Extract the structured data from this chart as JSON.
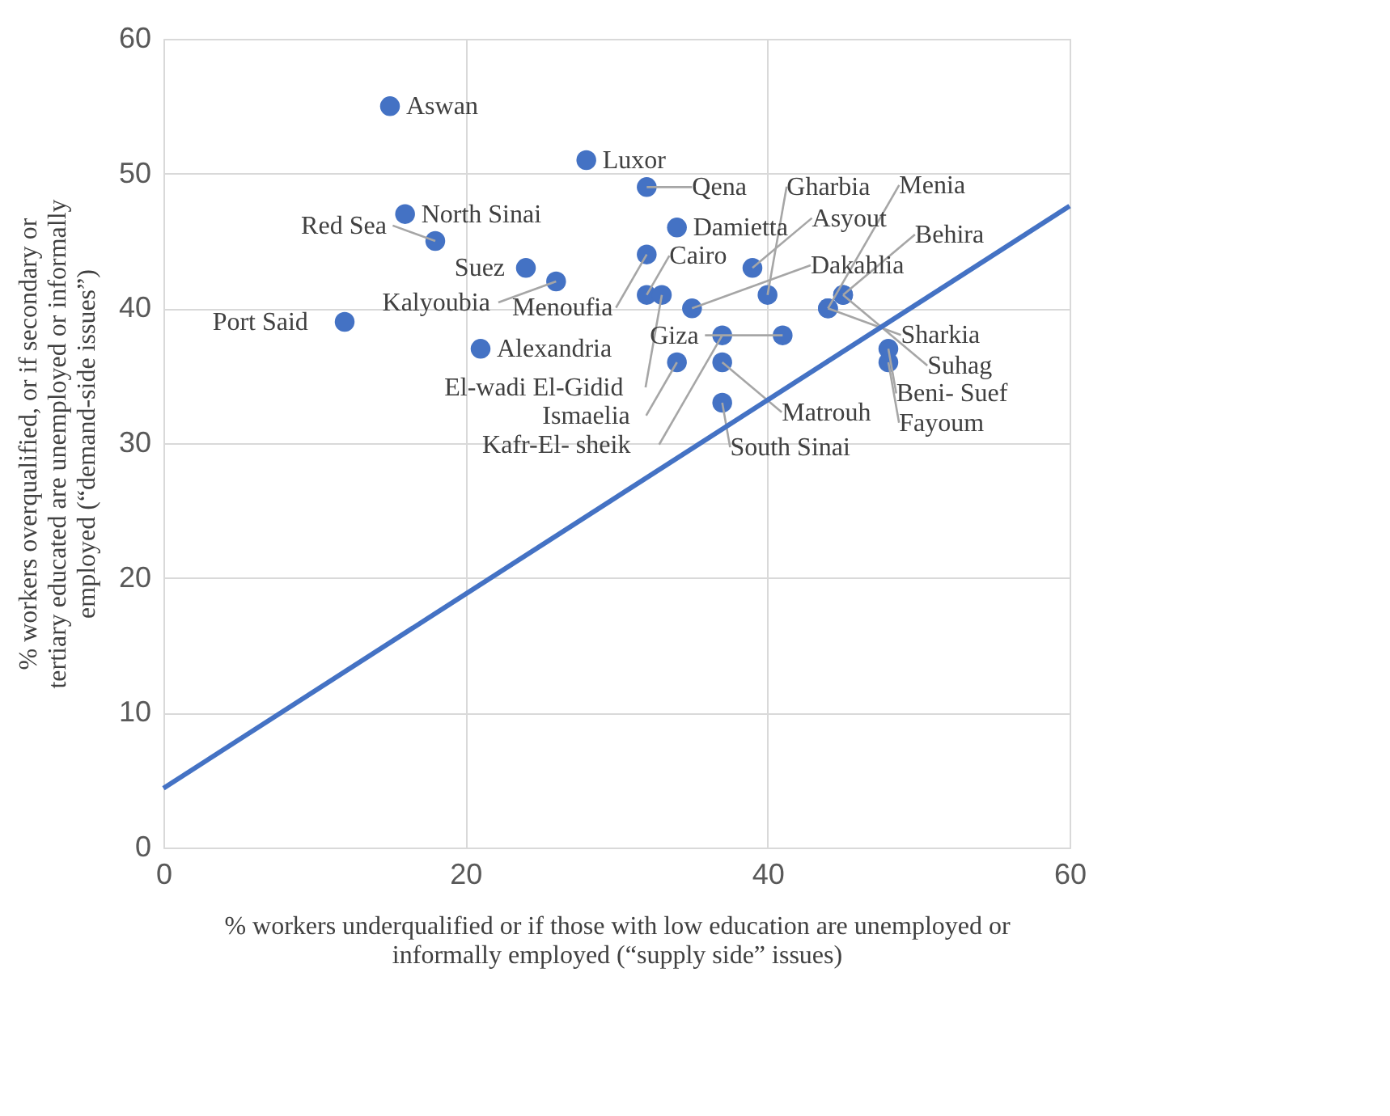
{
  "chart_data": {
    "type": "scatter",
    "xlabel": "% workers underqualified or if those with low education are unemployed or informally employed (“supply side” issues)",
    "ylabel": "% workers overqualified,  or if secondary or tertiary educated are unemployed or informally employed (“demand-side issues”)",
    "xlim": [
      0,
      60
    ],
    "xticks": [
      0,
      20,
      40,
      60
    ],
    "ylim": [
      0,
      60
    ],
    "yticks": [
      0,
      10,
      20,
      30,
      40,
      50,
      60
    ],
    "grid": true,
    "marker": "circle",
    "series": [
      {
        "color": "#4472c4",
        "x": [
          15,
          28,
          32,
          16,
          18,
          34,
          32,
          24,
          26,
          12,
          21,
          32,
          33,
          34,
          37,
          37,
          37,
          35,
          39,
          40,
          44,
          45,
          41,
          48,
          48,
          44,
          45
        ],
        "values": [
          55,
          51,
          49,
          47,
          45,
          46,
          44,
          43,
          42,
          39,
          37,
          41,
          41,
          36,
          33,
          36,
          38,
          40,
          43,
          41,
          40,
          41,
          38,
          37,
          36,
          40,
          41
        ],
        "value_labels": [
          "Aswan",
          "Luxor",
          "Qena",
          "North Sinai",
          "Red Sea",
          "Damietta",
          "Menoufia",
          "Suez",
          "Kalyoubia",
          "Port Said",
          "Alexandria",
          "Cairo",
          "El-wadi El-Gidid",
          "Ismaelia",
          "South Sinai",
          "Matrouh",
          "Kafr-El- sheik",
          "Dakahlia",
          "Asyout",
          "Gharbia",
          "Sharkia",
          "Behira",
          "Giza",
          "Beni- Suef",
          "Fayoum",
          "Menia",
          "Suhag"
        ]
      },
      {
        "type": "line",
        "color": "#4472c4",
        "marker": "none",
        "x": [
          0,
          60
        ],
        "values": [
          4.4,
          47.6
        ]
      }
    ]
  }
}
